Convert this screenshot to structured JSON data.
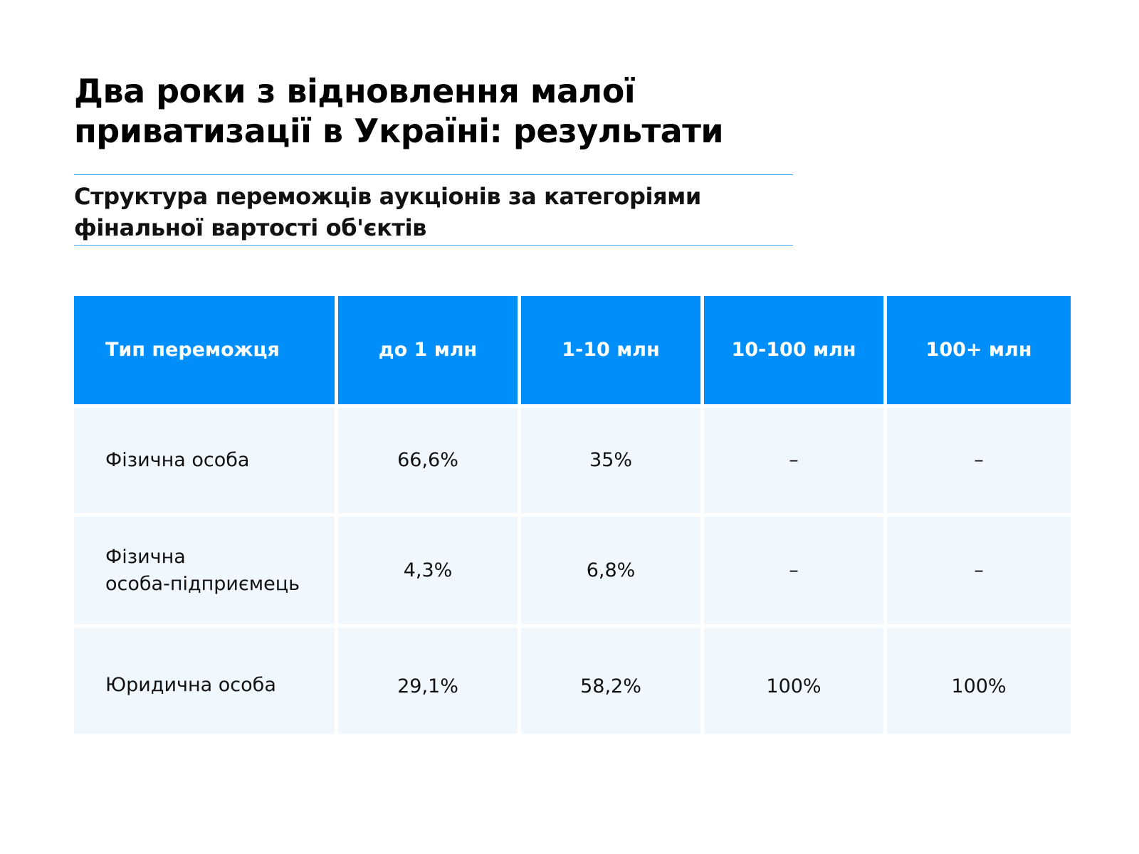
{
  "title_lines": [
    "Два роки з відновлення малої",
    "приватизації в Україні: результати"
  ],
  "subtitle_lines": [
    "Структура переможців аукціонів за категоріями",
    "фінальної вартості об'єктів"
  ],
  "colors": {
    "header_bg": "#008ffa",
    "body_bg": "#f0f7fd",
    "rule": "#3aa8f2"
  },
  "chart_data": {
    "type": "table",
    "title": "Два роки з відновлення малої приватизації в Україні: результати",
    "subtitle": "Структура переможців аукціонів за категоріями фінальної вартості об'єктів",
    "columns": [
      "Тип переможця",
      "до 1 млн",
      "1-10 млн",
      "10-100 млн",
      "100+ млн"
    ],
    "rows": [
      {
        "type": "Фізична особа",
        "type_lines": [
          "Фізична особа"
        ],
        "values": [
          "66,6%",
          "35%",
          "–",
          "–"
        ]
      },
      {
        "type": "Фізична особа-підприємець",
        "type_lines": [
          "Фізична",
          "особа-підприємець"
        ],
        "values": [
          "4,3%",
          "6,8%",
          "–",
          "–"
        ]
      },
      {
        "type": "Юридична особа",
        "type_lines": [
          "Юридична особа"
        ],
        "values": [
          "29,1%",
          "58,2%",
          "100%",
          "100%"
        ]
      }
    ]
  }
}
